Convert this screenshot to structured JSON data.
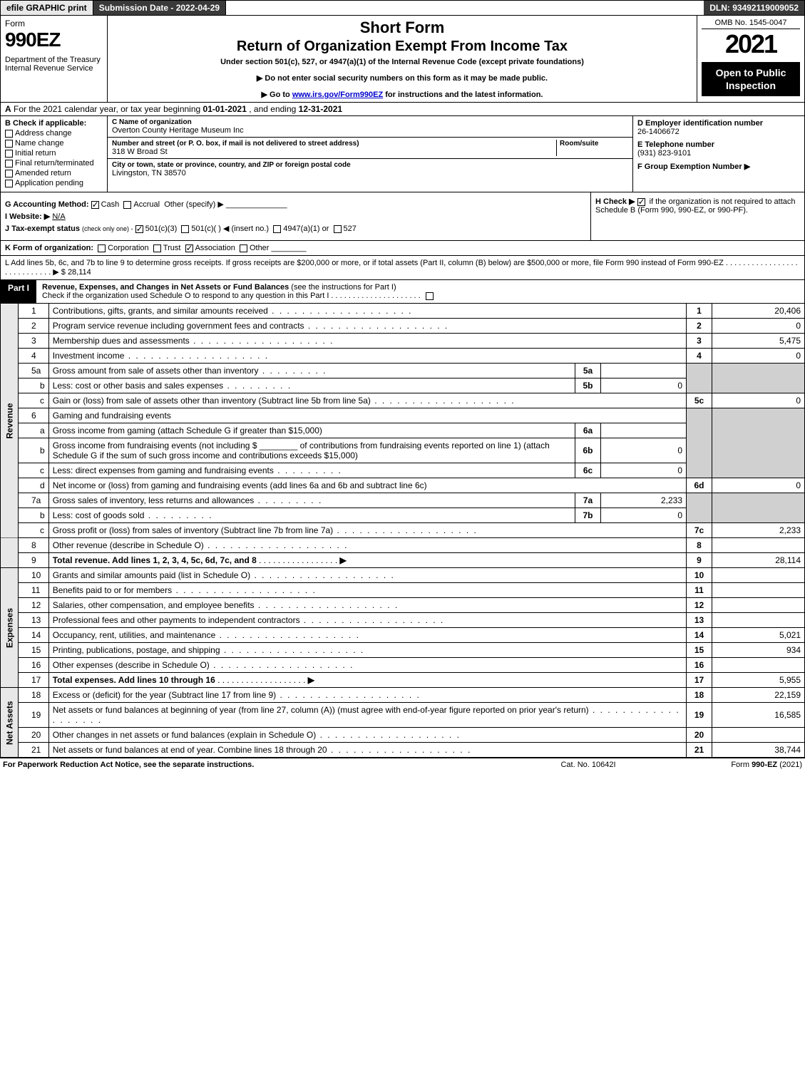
{
  "topbar": {
    "efile": "efile GRAPHIC print",
    "submission": "Submission Date - 2022-04-29",
    "dln": "DLN: 93492119009052"
  },
  "header": {
    "form_word": "Form",
    "form_no": "990EZ",
    "dept": "Department of the Treasury\nInternal Revenue Service",
    "title1": "Short Form",
    "title2": "Return of Organization Exempt From Income Tax",
    "subtitle": "Under section 501(c), 527, or 4947(a)(1) of the Internal Revenue Code (except private foundations)",
    "warn1": "▶ Do not enter social security numbers on this form as it may be made public.",
    "warn2_pre": "▶ Go to ",
    "warn2_link": "www.irs.gov/Form990EZ",
    "warn2_post": " for instructions and the latest information.",
    "omb": "OMB No. 1545-0047",
    "year": "2021",
    "open": "Open to Public Inspection"
  },
  "rowA": {
    "label": "A",
    "text_pre": "For the 2021 calendar year, or tax year beginning ",
    "begin": "01-01-2021",
    "mid": " , and ending ",
    "end": "12-31-2021"
  },
  "colB": {
    "hdr": "B  Check if applicable:",
    "opts": [
      "Address change",
      "Name change",
      "Initial return",
      "Final return/terminated",
      "Amended return",
      "Application pending"
    ]
  },
  "colC": {
    "name_lbl": "C Name of organization",
    "name": "Overton County Heritage Museum Inc",
    "street_lbl": "Number and street (or P. O. box, if mail is not delivered to street address)",
    "room_lbl": "Room/suite",
    "street": "318 W Broad St",
    "city_lbl": "City or town, state or province, country, and ZIP or foreign postal code",
    "city": "Livingston, TN  38570"
  },
  "colD": {
    "ein_lbl": "D Employer identification number",
    "ein": "26-1406672",
    "tel_lbl": "E Telephone number",
    "tel": "(931) 823-9101",
    "grp_lbl": "F Group Exemption Number  ▶"
  },
  "blockG": {
    "g_lbl": "G Accounting Method:",
    "g_cash": "Cash",
    "g_accr": "Accrual",
    "g_other": "Other (specify) ▶",
    "i_lbl": "I Website: ▶",
    "i_val": "N/A",
    "j_lbl": "J Tax-exempt status",
    "j_note": "(check only one) -",
    "j_501c3": "501(c)(3)",
    "j_501c": "501(c)(   ) ◀ (insert no.)",
    "j_4947": "4947(a)(1) or",
    "j_527": "527",
    "h_lbl": "H  Check ▶",
    "h_txt": "if the organization is not required to attach Schedule B (Form 990, 990-EZ, or 990-PF)."
  },
  "rowK": {
    "lbl": "K Form of organization:",
    "corp": "Corporation",
    "trust": "Trust",
    "assoc": "Association",
    "other": "Other"
  },
  "rowL": {
    "text": "L Add lines 5b, 6c, and 7b to line 9 to determine gross receipts. If gross receipts are $200,000 or more, or if total assets (Part II, column (B) below) are $500,000 or more, file Form 990 instead of Form 990-EZ .  .  .  .  .  .  .  .  .  .  .  .  .  .  .  .  .  .  .  .  .  .  .  .  .  .  .  .  ▶ $",
    "amount": "28,114"
  },
  "part1": {
    "tab": "Part I",
    "title": "Revenue, Expenses, and Changes in Net Assets or Fund Balances",
    "note": "(see the instructions for Part I)",
    "check_o": "Check if the organization used Schedule O to respond to any question in this Part I .  .  .  .  .  .  .  .  .  .  .  .  .  .  .  .  .  .  .  .  ."
  },
  "sides": {
    "rev": "Revenue",
    "exp": "Expenses",
    "na": "Net Assets"
  },
  "lines": {
    "l1": {
      "n": "1",
      "d": "Contributions, gifts, grants, and similar amounts received",
      "box": "1",
      "v": "20,406"
    },
    "l2": {
      "n": "2",
      "d": "Program service revenue including government fees and contracts",
      "box": "2",
      "v": "0"
    },
    "l3": {
      "n": "3",
      "d": "Membership dues and assessments",
      "box": "3",
      "v": "5,475"
    },
    "l4": {
      "n": "4",
      "d": "Investment income",
      "box": "4",
      "v": "0"
    },
    "l5a": {
      "n": "5a",
      "d": "Gross amount from sale of assets other than inventory",
      "mini": "5a",
      "mv": ""
    },
    "l5b": {
      "n": "b",
      "d": "Less: cost or other basis and sales expenses",
      "mini": "5b",
      "mv": "0"
    },
    "l5c": {
      "n": "c",
      "d": "Gain or (loss) from sale of assets other than inventory (Subtract line 5b from line 5a)",
      "box": "5c",
      "v": "0"
    },
    "l6": {
      "n": "6",
      "d": "Gaming and fundraising events"
    },
    "l6a": {
      "n": "a",
      "d": "Gross income from gaming (attach Schedule G if greater than $15,000)",
      "mini": "6a",
      "mv": ""
    },
    "l6b": {
      "n": "b",
      "d1": "Gross income from fundraising events (not including $",
      "d2": "of contributions from fundraising events reported on line 1) (attach Schedule G if the sum of such gross income and contributions exceeds $15,000)",
      "mini": "6b",
      "mv": "0"
    },
    "l6c": {
      "n": "c",
      "d": "Less: direct expenses from gaming and fundraising events",
      "mini": "6c",
      "mv": "0"
    },
    "l6d": {
      "n": "d",
      "d": "Net income or (loss) from gaming and fundraising events (add lines 6a and 6b and subtract line 6c)",
      "box": "6d",
      "v": "0"
    },
    "l7a": {
      "n": "7a",
      "d": "Gross sales of inventory, less returns and allowances",
      "mini": "7a",
      "mv": "2,233"
    },
    "l7b": {
      "n": "b",
      "d": "Less: cost of goods sold",
      "mini": "7b",
      "mv": "0"
    },
    "l7c": {
      "n": "c",
      "d": "Gross profit or (loss) from sales of inventory (Subtract line 7b from line 7a)",
      "box": "7c",
      "v": "2,233"
    },
    "l8": {
      "n": "8",
      "d": "Other revenue (describe in Schedule O)",
      "box": "8",
      "v": ""
    },
    "l9": {
      "n": "9",
      "d": "Total revenue. Add lines 1, 2, 3, 4, 5c, 6d, 7c, and 8",
      "box": "9",
      "v": "28,114"
    },
    "l10": {
      "n": "10",
      "d": "Grants and similar amounts paid (list in Schedule O)",
      "box": "10",
      "v": ""
    },
    "l11": {
      "n": "11",
      "d": "Benefits paid to or for members",
      "box": "11",
      "v": ""
    },
    "l12": {
      "n": "12",
      "d": "Salaries, other compensation, and employee benefits",
      "box": "12",
      "v": ""
    },
    "l13": {
      "n": "13",
      "d": "Professional fees and other payments to independent contractors",
      "box": "13",
      "v": ""
    },
    "l14": {
      "n": "14",
      "d": "Occupancy, rent, utilities, and maintenance",
      "box": "14",
      "v": "5,021"
    },
    "l15": {
      "n": "15",
      "d": "Printing, publications, postage, and shipping",
      "box": "15",
      "v": "934"
    },
    "l16": {
      "n": "16",
      "d": "Other expenses (describe in Schedule O)",
      "box": "16",
      "v": ""
    },
    "l17": {
      "n": "17",
      "d": "Total expenses. Add lines 10 through 16",
      "box": "17",
      "v": "5,955"
    },
    "l18": {
      "n": "18",
      "d": "Excess or (deficit) for the year (Subtract line 17 from line 9)",
      "box": "18",
      "v": "22,159"
    },
    "l19": {
      "n": "19",
      "d": "Net assets or fund balances at beginning of year (from line 27, column (A)) (must agree with end-of-year figure reported on prior year's return)",
      "box": "19",
      "v": "16,585"
    },
    "l20": {
      "n": "20",
      "d": "Other changes in net assets or fund balances (explain in Schedule O)",
      "box": "20",
      "v": ""
    },
    "l21": {
      "n": "21",
      "d": "Net assets or fund balances at end of year. Combine lines 18 through 20",
      "box": "21",
      "v": "38,744"
    }
  },
  "footer": {
    "left": "For Paperwork Reduction Act Notice, see the separate instructions.",
    "mid": "Cat. No. 10642I",
    "right_pre": "Form ",
    "right_b": "990-EZ",
    "right_post": " (2021)"
  },
  "colors": {
    "dark_bg": "#3a3a3a",
    "light_bg": "#e8e8e8",
    "shade": "#d0d0d0",
    "link": "#0000cc"
  }
}
